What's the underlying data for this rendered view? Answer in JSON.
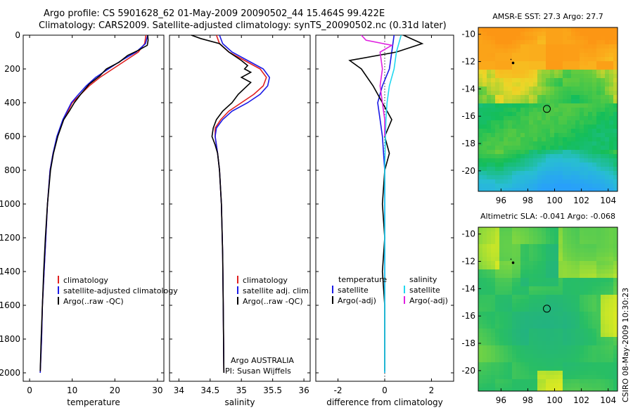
{
  "header": {
    "line1": "Argo profile: CS 5901628_62 01-May-2009 20090502_44 15.464S 99.422E",
    "line2": "Climatology: CARS2009. Satellite-adjusted climatology: synTS_20090502.nc (0.31d later)"
  },
  "side_stamp": "CSIRO 08-May-2009 10:30:23",
  "colors": {
    "climatology": "#e02020",
    "satellite": "#1a1ae6",
    "argo": "#000000",
    "satellite_salinity": "#20d8f0",
    "argo_adj_salinity": "#e020e0"
  },
  "chart_data": [
    {
      "type": "line",
      "id": "temperature",
      "xlabel": "temperature",
      "xlim": [
        -1.5,
        31.5
      ],
      "ylim": [
        2050,
        0
      ],
      "xticks": [
        0,
        10,
        20,
        30
      ],
      "xtick_labels": [
        "0",
        "10",
        "20",
        "30"
      ],
      "yticks": [
        0,
        200,
        400,
        600,
        800,
        1000,
        1200,
        1400,
        1600,
        1800,
        2000
      ],
      "ytick_labels": [
        "0",
        "200",
        "400",
        "600",
        "800",
        "1000",
        "1200",
        "1400",
        "1600",
        "1800",
        "2000"
      ],
      "legend": {
        "position": "lower-center",
        "entries": [
          "climatology",
          "satellite-adjusted climatology",
          "Argo(..raw -QC)"
        ]
      },
      "series": [
        {
          "name": "climatology",
          "color": "#e02020",
          "x": [
            27.3,
            27.0,
            25.5,
            22.5,
            19.5,
            16.5,
            14.0,
            12.0,
            10.0,
            9.0,
            8.0,
            6.5,
            5.5,
            4.8,
            4.2,
            3.8,
            3.4,
            3.0,
            2.8,
            2.5
          ],
          "y": [
            0,
            50,
            100,
            150,
            200,
            250,
            300,
            350,
            400,
            450,
            500,
            600,
            700,
            800,
            1000,
            1200,
            1400,
            1600,
            1800,
            2000
          ]
        },
        {
          "name": "satellite-adjusted climatology",
          "color": "#1a1ae6",
          "x": [
            27.7,
            27.2,
            25.0,
            21.5,
            18.5,
            15.5,
            13.3,
            11.5,
            9.8,
            8.8,
            7.8,
            6.4,
            5.5,
            4.8,
            4.2,
            3.8,
            3.4,
            3.0,
            2.8,
            2.5
          ],
          "y": [
            0,
            50,
            100,
            150,
            200,
            250,
            300,
            350,
            400,
            450,
            500,
            600,
            700,
            800,
            1000,
            1200,
            1400,
            1600,
            1800,
            2000
          ]
        },
        {
          "name": "Argo(..raw -QC)",
          "color": "#000000",
          "x": [
            27.7,
            27.8,
            27.6,
            25.5,
            23.0,
            21.0,
            18.0,
            16.5,
            14.0,
            12.0,
            10.5,
            9.3,
            8.0,
            6.6,
            5.6,
            4.9,
            4.2,
            3.7,
            3.3,
            3.0,
            2.7,
            2.5
          ],
          "y": [
            0,
            30,
            60,
            90,
            120,
            160,
            200,
            240,
            290,
            350,
            400,
            450,
            500,
            600,
            700,
            800,
            1000,
            1200,
            1400,
            1600,
            1800,
            1990
          ]
        }
      ]
    },
    {
      "type": "line",
      "id": "salinity",
      "xlabel": "salinity",
      "xlim": [
        33.85,
        36.1
      ],
      "ylim": [
        2050,
        0
      ],
      "xticks": [
        34,
        34.5,
        35,
        35.5,
        36
      ],
      "xtick_labels": [
        "34",
        "34.5",
        "35",
        "35.5",
        "36"
      ],
      "legend": {
        "position": "lower-center",
        "entries": [
          "climatology",
          "satellite adj. clim.",
          "Argo(..raw -QC)"
        ]
      },
      "annotation": [
        "Argo AUSTRALIA",
        "PI: Susan Wijffels"
      ],
      "series": [
        {
          "name": "climatology",
          "color": "#e02020",
          "x": [
            34.6,
            34.65,
            34.8,
            35.05,
            35.3,
            35.4,
            35.35,
            35.2,
            35.0,
            34.8,
            34.67,
            34.58,
            34.58,
            34.62,
            34.65,
            34.68,
            34.7,
            34.71,
            34.72
          ],
          "y": [
            0,
            50,
            100,
            150,
            200,
            250,
            300,
            350,
            400,
            450,
            500,
            550,
            600,
            700,
            800,
            1000,
            1300,
            1600,
            2000
          ]
        },
        {
          "name": "satellite adj. clim.",
          "color": "#1a1ae6",
          "x": [
            34.65,
            34.7,
            34.85,
            35.1,
            35.35,
            35.45,
            35.42,
            35.3,
            35.1,
            34.85,
            34.7,
            34.6,
            34.58,
            34.62,
            34.65,
            34.68,
            34.7,
            34.71,
            34.72
          ],
          "y": [
            0,
            50,
            100,
            150,
            200,
            250,
            300,
            350,
            400,
            450,
            500,
            550,
            600,
            700,
            800,
            1000,
            1300,
            1600,
            2000
          ]
        },
        {
          "name": "Argo(..raw -QC)",
          "color": "#000000",
          "x": [
            34.2,
            34.35,
            34.65,
            34.8,
            35.0,
            35.1,
            35.05,
            35.15,
            35.0,
            35.15,
            34.95,
            34.85,
            34.7,
            34.6,
            34.55,
            34.53,
            34.58,
            34.62,
            34.65,
            34.68,
            34.7,
            34.71,
            34.72
          ],
          "y": [
            0,
            20,
            50,
            100,
            150,
            180,
            200,
            220,
            250,
            280,
            350,
            400,
            450,
            500,
            550,
            600,
            650,
            700,
            800,
            1000,
            1300,
            1600,
            2000
          ]
        }
      ]
    },
    {
      "type": "line",
      "id": "difference",
      "xlabel": "difference from climatology",
      "xlim": [
        -2.95,
        2.95
      ],
      "ylim": [
        2050,
        0
      ],
      "xticks": [
        -2,
        0,
        2
      ],
      "xtick_labels": [
        "-2",
        "0",
        "2"
      ],
      "legend": {
        "position": "lower-center",
        "group_titles": [
          "temperature",
          "salinity"
        ],
        "entries": [
          "satellite",
          "Argo(-adj)",
          "satellite",
          "Argo(-adj)"
        ]
      },
      "series": [
        {
          "name": "temperature satellite",
          "color": "#1a1ae6",
          "x": [
            0.4,
            0.3,
            0.2,
            -0.1,
            -0.3,
            -0.2,
            -0.1,
            0.0,
            0.0,
            0.0,
            0.0,
            0.0
          ],
          "y": [
            0,
            100,
            200,
            300,
            400,
            500,
            600,
            800,
            1000,
            1400,
            1800,
            2000
          ]
        },
        {
          "name": "temperature Argo(-adj)",
          "color": "#000000",
          "x": [
            0.8,
            1.6,
            0.5,
            -1.5,
            -1.0,
            -0.5,
            -0.1,
            0.3,
            0.0,
            0.2,
            0.0,
            -0.1,
            0.0,
            -0.1,
            0.0,
            0.0,
            0.0
          ],
          "y": [
            0,
            50,
            100,
            150,
            200,
            300,
            400,
            500,
            600,
            700,
            800,
            1000,
            1200,
            1400,
            1600,
            1800,
            1990
          ]
        },
        {
          "name": "salinity satellite",
          "color": "#20d8f0",
          "x": [
            0.7,
            0.5,
            0.4,
            0.2,
            0.1,
            0.05,
            0.03,
            0.0,
            0.0,
            0.0,
            0.0
          ],
          "y": [
            0,
            100,
            200,
            300,
            400,
            500,
            600,
            800,
            1000,
            1500,
            2000
          ]
        },
        {
          "name": "salinity Argo(-adj)",
          "color": "#e020e0",
          "x": [
            -1.0,
            -0.8,
            0.3,
            -0.2,
            -0.1,
            -0.2,
            -0.1,
            0.0,
            0.0
          ],
          "y": [
            0,
            30,
            60,
            100,
            200,
            300,
            400,
            500,
            600
          ]
        }
      ]
    },
    {
      "type": "heatmap",
      "id": "sst-map",
      "title": "AMSR-E SST: 27.3 Argo: 27.7",
      "xlim": [
        94.3,
        104.7
      ],
      "ylim": [
        -21.5,
        -9.5
      ],
      "xticks": [
        96,
        98,
        100,
        102,
        104
      ],
      "xtick_labels": [
        "96",
        "98",
        "100",
        "102",
        "104"
      ],
      "yticks": [
        -10,
        -12,
        -14,
        -16,
        -18,
        -20
      ],
      "ytick_labels": [
        "-10",
        "-12",
        "-14",
        "-16",
        "-18",
        "-20"
      ],
      "argo_position": [
        99.422,
        -15.464
      ],
      "track_points": [
        [
          96.9,
          -12.1
        ]
      ],
      "zones": [
        "orange",
        "yellow",
        "green",
        "blue"
      ]
    },
    {
      "type": "heatmap",
      "id": "sla-map",
      "title": "Altimetric SLA: -0.041 Argo: -0.068",
      "xlim": [
        94.3,
        104.7
      ],
      "ylim": [
        -21.5,
        -9.5
      ],
      "xticks": [
        96,
        98,
        100,
        102,
        104
      ],
      "xtick_labels": [
        "96",
        "98",
        "100",
        "102",
        "104"
      ],
      "yticks": [
        -10,
        -12,
        -14,
        -16,
        -18,
        -20
      ],
      "ytick_labels": [
        "-10",
        "-12",
        "-14",
        "-16",
        "-18",
        "-20"
      ],
      "argo_position": [
        99.422,
        -15.464
      ],
      "track_points": [
        [
          96.9,
          -12.1
        ]
      ],
      "zones": [
        "green",
        "yellow"
      ]
    }
  ]
}
